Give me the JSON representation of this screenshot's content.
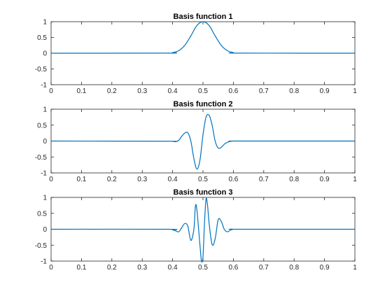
{
  "chart_data": [
    {
      "type": "line",
      "title": "Basis function 1",
      "xlim": [
        0,
        1
      ],
      "ylim": [
        -1,
        1
      ],
      "x_ticks": [
        "0",
        "0.1",
        "0.2",
        "0.3",
        "0.4",
        "0.5",
        "0.6",
        "0.7",
        "0.8",
        "0.9",
        "1"
      ],
      "y_ticks": [
        "1",
        "0.5",
        "0",
        "-0.5",
        "-1"
      ],
      "series": [
        {
          "color": "#0072bd",
          "x": [
            0,
            0.38,
            0.4,
            0.42,
            0.44,
            0.46,
            0.48,
            0.5,
            0.52,
            0.54,
            0.56,
            0.58,
            0.6,
            0.62,
            1
          ],
          "y": [
            0,
            0.002,
            0.02,
            0.08,
            0.25,
            0.55,
            0.88,
            1.0,
            0.88,
            0.55,
            0.25,
            0.08,
            0.02,
            0.002,
            0
          ]
        }
      ]
    },
    {
      "type": "line",
      "title": "Basis function 2",
      "xlim": [
        0,
        1
      ],
      "ylim": [
        -1,
        1
      ],
      "x_ticks": [
        "0",
        "0.1",
        "0.2",
        "0.3",
        "0.4",
        "0.5",
        "0.6",
        "0.7",
        "0.8",
        "0.9",
        "1"
      ],
      "y_ticks": [
        "1",
        "0.5",
        "0",
        "-0.5",
        "-1"
      ],
      "series": [
        {
          "color": "#0072bd",
          "x": [
            0,
            0.38,
            0.4,
            0.41,
            0.42,
            0.43,
            0.44,
            0.45,
            0.46,
            0.47,
            0.48,
            0.49,
            0.5,
            0.51,
            0.52,
            0.53,
            0.54,
            0.55,
            0.56,
            0.57,
            0.58,
            0.59,
            0.6,
            0.62,
            1
          ],
          "y": [
            0,
            -0.005,
            -0.01,
            -0.02,
            0.02,
            0.15,
            0.25,
            0.26,
            0.0,
            -0.55,
            -0.88,
            -0.6,
            0.2,
            0.75,
            0.81,
            0.5,
            0.0,
            -0.22,
            -0.2,
            -0.1,
            -0.04,
            -0.01,
            0.0,
            0.0,
            0
          ]
        }
      ]
    },
    {
      "type": "line",
      "title": "Basis function 3",
      "xlim": [
        0,
        1
      ],
      "ylim": [
        -1,
        1
      ],
      "x_ticks": [
        "0",
        "0.1",
        "0.2",
        "0.3",
        "0.4",
        "0.5",
        "0.6",
        "0.7",
        "0.8",
        "0.9",
        "1"
      ],
      "y_ticks": [
        "1",
        "0.5",
        "0",
        "-0.5",
        "-1"
      ],
      "series": [
        {
          "color": "#0072bd",
          "x": [
            0,
            0.38,
            0.4,
            0.41,
            0.42,
            0.43,
            0.44,
            0.45,
            0.46,
            0.47,
            0.475,
            0.48,
            0.49,
            0.495,
            0.5,
            0.505,
            0.51,
            0.515,
            0.52,
            0.53,
            0.54,
            0.55,
            0.56,
            0.57,
            0.58,
            0.59,
            0.6,
            0.62,
            1
          ],
          "y": [
            0,
            0.0,
            -0.02,
            -0.05,
            -0.08,
            0.05,
            0.18,
            0.1,
            -0.35,
            0.0,
            0.72,
            0.6,
            -0.5,
            -1.0,
            -0.85,
            0.2,
            0.95,
            0.75,
            0.2,
            -0.48,
            -0.3,
            0.3,
            0.25,
            0.0,
            -0.08,
            -0.03,
            0.0,
            0.0,
            0
          ]
        }
      ]
    }
  ]
}
